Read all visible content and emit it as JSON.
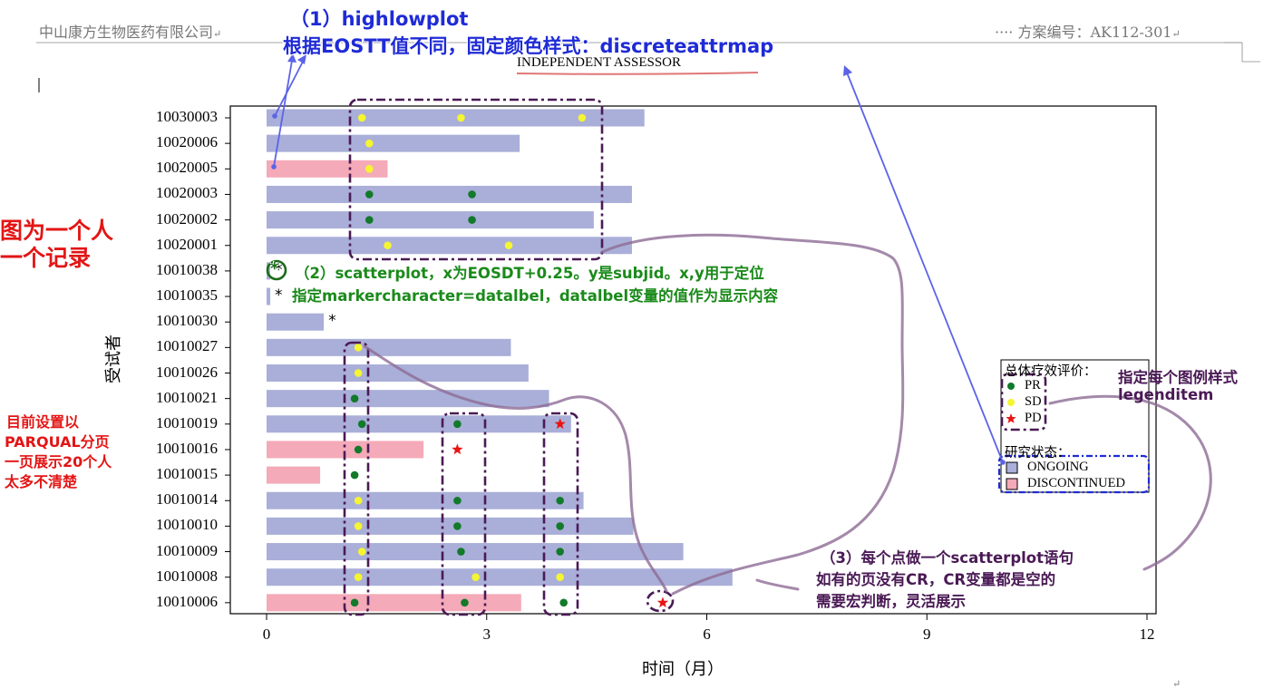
{
  "header": {
    "company": "中山康方生物医药有限公司",
    "protocol": "方案编号：AK112-301",
    "para_mark": "↵",
    "dots": "····"
  },
  "chart_data": {
    "type": "bar",
    "title": "INDEPENDENT ASSESSOR",
    "xlabel": "时间（月）",
    "ylabel": "受试者",
    "xlim": [
      0,
      12
    ],
    "xticks": [
      0,
      3,
      6,
      9,
      12
    ],
    "grid": false,
    "legend_position": "right",
    "colors": {
      "ONGOING": "#a9afd8",
      "DISCONTINUED": "#f4aab8",
      "PR": "#127a2a",
      "SD": "#f5f531",
      "PD": "#e81515"
    },
    "subjects": [
      {
        "id": "10030003",
        "duration": 5.15,
        "status": "ONGOING",
        "responses": [
          {
            "t": 1.3,
            "r": "SD"
          },
          {
            "t": 2.65,
            "r": "SD"
          },
          {
            "t": 4.3,
            "r": "SD"
          }
        ]
      },
      {
        "id": "10020006",
        "duration": 3.45,
        "status": "ONGOING",
        "responses": [
          {
            "t": 1.4,
            "r": "SD"
          }
        ]
      },
      {
        "id": "10020005",
        "duration": 1.65,
        "status": "DISCONTINUED",
        "responses": [
          {
            "t": 1.4,
            "r": "SD"
          }
        ]
      },
      {
        "id": "10020003",
        "duration": 4.98,
        "status": "ONGOING",
        "responses": [
          {
            "t": 1.4,
            "r": "PR"
          },
          {
            "t": 2.8,
            "r": "PR"
          }
        ]
      },
      {
        "id": "10020002",
        "duration": 4.46,
        "status": "ONGOING",
        "responses": [
          {
            "t": 1.4,
            "r": "PR"
          },
          {
            "t": 2.8,
            "r": "PR"
          }
        ]
      },
      {
        "id": "10020001",
        "duration": 4.98,
        "status": "ONGOING",
        "responses": [
          {
            "t": 1.65,
            "r": "SD"
          },
          {
            "t": 3.3,
            "r": "SD"
          }
        ]
      },
      {
        "id": "10010038",
        "duration": 0.05,
        "status": "ONGOING",
        "responses": [],
        "label": "*"
      },
      {
        "id": "10010035",
        "duration": 0.05,
        "status": "ONGOING",
        "responses": [],
        "label": "*"
      },
      {
        "id": "10010030",
        "duration": 0.78,
        "status": "ONGOING",
        "responses": [],
        "label": "*"
      },
      {
        "id": "10010027",
        "duration": 3.33,
        "status": "ONGOING",
        "responses": [
          {
            "t": 1.25,
            "r": "SD"
          }
        ]
      },
      {
        "id": "10010026",
        "duration": 3.57,
        "status": "ONGOING",
        "responses": [
          {
            "t": 1.25,
            "r": "SD"
          }
        ]
      },
      {
        "id": "10010021",
        "duration": 3.85,
        "status": "ONGOING",
        "responses": [
          {
            "t": 1.2,
            "r": "PR"
          }
        ]
      },
      {
        "id": "10010019",
        "duration": 4.15,
        "status": "ONGOING",
        "responses": [
          {
            "t": 1.3,
            "r": "PR"
          },
          {
            "t": 2.6,
            "r": "PR"
          },
          {
            "t": 4.0,
            "r": "PD"
          }
        ]
      },
      {
        "id": "10010016",
        "duration": 2.14,
        "status": "DISCONTINUED",
        "responses": [
          {
            "t": 1.25,
            "r": "PR"
          },
          {
            "t": 2.6,
            "r": "PD"
          }
        ]
      },
      {
        "id": "10010015",
        "duration": 0.73,
        "status": "DISCONTINUED",
        "responses": [
          {
            "t": 1.2,
            "r": "PR"
          }
        ]
      },
      {
        "id": "10010014",
        "duration": 4.32,
        "status": "ONGOING",
        "responses": [
          {
            "t": 1.25,
            "r": "SD"
          },
          {
            "t": 2.6,
            "r": "PR"
          },
          {
            "t": 4.0,
            "r": "PR"
          }
        ]
      },
      {
        "id": "10010010",
        "duration": 5.0,
        "status": "ONGOING",
        "responses": [
          {
            "t": 1.25,
            "r": "SD"
          },
          {
            "t": 2.6,
            "r": "PR"
          },
          {
            "t": 4.0,
            "r": "PR"
          }
        ]
      },
      {
        "id": "10010009",
        "duration": 5.68,
        "status": "ONGOING",
        "responses": [
          {
            "t": 1.3,
            "r": "SD"
          },
          {
            "t": 2.65,
            "r": "PR"
          },
          {
            "t": 4.0,
            "r": "PR"
          }
        ]
      },
      {
        "id": "10010008",
        "duration": 6.35,
        "status": "ONGOING",
        "responses": [
          {
            "t": 1.25,
            "r": "SD"
          },
          {
            "t": 2.85,
            "r": "SD"
          },
          {
            "t": 4.0,
            "r": "SD"
          }
        ]
      },
      {
        "id": "10010006",
        "duration": 3.47,
        "status": "DISCONTINUED",
        "responses": [
          {
            "t": 1.2,
            "r": "PR"
          },
          {
            "t": 2.7,
            "r": "PR"
          },
          {
            "t": 4.05,
            "r": "PR"
          },
          {
            "t": 5.4,
            "r": "PD"
          }
        ]
      }
    ],
    "legend": {
      "response_title": "总体疗效评价：",
      "response_items": [
        "PR",
        "SD",
        "PD"
      ],
      "status_title": "研究状态：",
      "status_items": [
        "ONGOING",
        "DISCONTINUED"
      ]
    }
  },
  "annotations": {
    "a1_line1": "（1）highlowplot",
    "a1_line2": "根据EOSTT值不同，固定颜色样式：discreteattrmap",
    "left_red_1": "图为一个人",
    "left_red_2": "一个记录",
    "a2_line1": "（2）scatterplot，x为EOSDT+0.25。y是subjid。x,y用于定位",
    "a2_line2": "指定markercharacter=datalbel，datalbel变量的值作为显示内容",
    "a2_icon": "*",
    "left_red_3": "目前设置以",
    "left_red_4": "PARQUAL分页",
    "left_red_5": "一页展示20个人",
    "left_red_6": "太多不清楚",
    "legend_note_1": "指定每个图例样式",
    "legend_note_2": "legenditem",
    "a3_line1": "（3）每个点做一个scatterplot语句",
    "a3_line2": "如有的页没有CR，CR变量都是空的",
    "a3_line3": "需要宏判断，灵活展示"
  }
}
